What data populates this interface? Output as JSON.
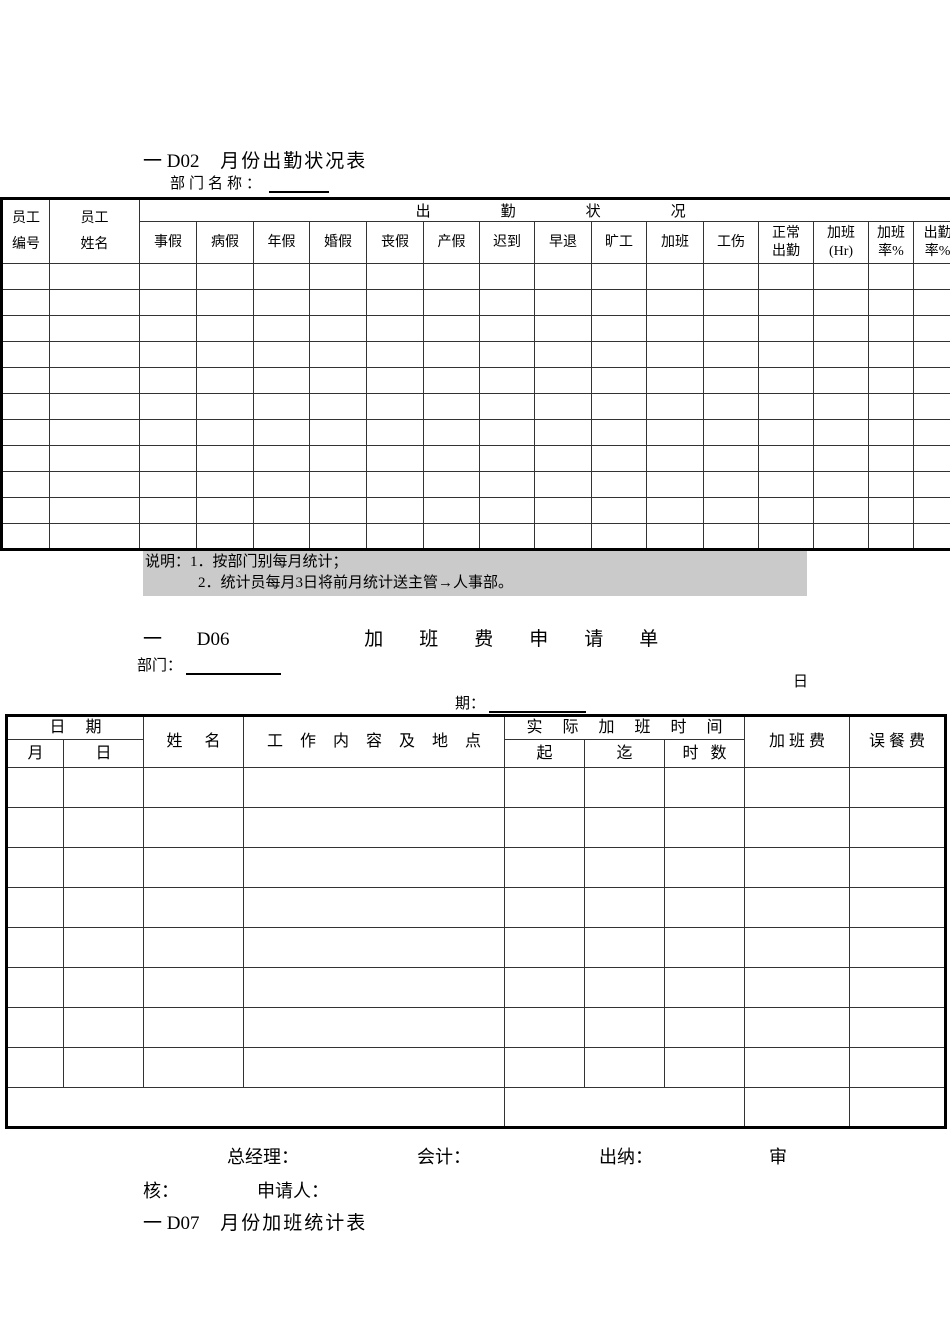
{
  "section_d02": {
    "code": "一 D02",
    "title": "月份出勤状况表",
    "dept_label": "部门名称：",
    "table": {
      "col1_header": "员工\n编号",
      "col2_header": "员工\n姓名",
      "group_header": "出勤状况",
      "sub_headers": [
        "事假",
        "病假",
        "年假",
        "婚假",
        "丧假",
        "产假",
        "迟到",
        "早退",
        "旷工",
        "加班",
        "工伤",
        "正常\n出勤",
        "加班\n(Hr)",
        "加班\n率%",
        "出勤\n率%"
      ],
      "empty_rows": 11
    },
    "notes": {
      "label": "说明：",
      "line1": "1．按部门别每月统计；",
      "line2": "2．统计员每月3日将前月统计送主管→人事部。"
    }
  },
  "section_d06": {
    "prefix": "一",
    "code": "D06",
    "title": "加班费申请单",
    "dept_label": "部门：",
    "date_char_top": "日",
    "date_label_bottom": "期：",
    "table": {
      "group_date": "日期",
      "col_month": "月",
      "col_day": "日",
      "col_name": "姓名",
      "col_work": "工作内容及地点",
      "group_time": "实际加班时间",
      "col_start": "起",
      "col_end": "迄",
      "col_hours": "时数",
      "col_fee": "加班费",
      "col_meal": "误餐费",
      "empty_rows": 8
    },
    "signatures": {
      "general_manager": "总经理：",
      "accountant": "会计：",
      "cashier": "出纳：",
      "review_part1": "审",
      "review_part2": "核：",
      "applicant": "申请人："
    }
  },
  "section_d07": {
    "code": "一 D07",
    "title": "月份加班统计表"
  },
  "colors": {
    "note_background": "#cacaca",
    "border": "#000000",
    "inner_line": "#333333"
  }
}
